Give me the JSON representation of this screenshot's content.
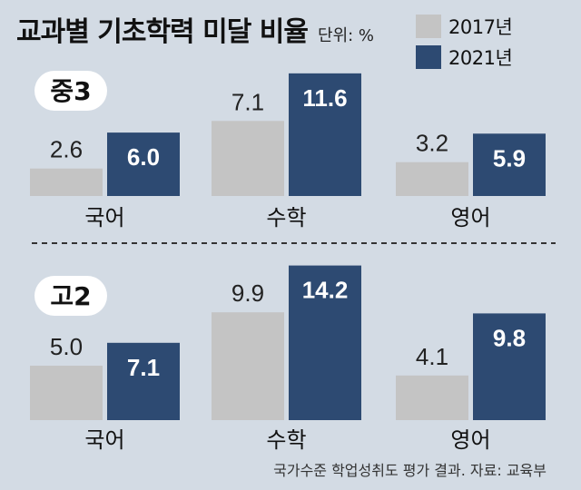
{
  "title": "교과별 기초학력 미달 비율",
  "unit": "단위: %",
  "colors": {
    "y2017": "#c4c4c4",
    "y2021": "#2d4a72"
  },
  "legend": [
    {
      "label": "2017년",
      "color": "#c4c4c4"
    },
    {
      "label": "2021년",
      "color": "#2d4a72"
    }
  ],
  "source": "국가수준 학업성취도 평가 결과.   자료: 교육부",
  "chart_data": [
    {
      "type": "bar",
      "panel": "중3",
      "categories": [
        "국어",
        "수학",
        "영어"
      ],
      "series": [
        {
          "name": "2017년",
          "values": [
            2.6,
            7.1,
            3.2
          ],
          "labels": [
            "2.6",
            "7.1",
            "3.2"
          ]
        },
        {
          "name": "2021년",
          "values": [
            6.0,
            11.6,
            5.9
          ],
          "labels": [
            "6.0",
            "11.6",
            "5.9"
          ]
        }
      ],
      "ylim": [
        0,
        15
      ]
    },
    {
      "type": "bar",
      "panel": "고2",
      "categories": [
        "국어",
        "수학",
        "영어"
      ],
      "series": [
        {
          "name": "2017년",
          "values": [
            5.0,
            9.9,
            4.1
          ],
          "labels": [
            "5.0",
            "9.9",
            "4.1"
          ]
        },
        {
          "name": "2021년",
          "values": [
            7.1,
            14.2,
            9.8
          ],
          "labels": [
            "7.1",
            "14.2",
            "9.8"
          ]
        }
      ],
      "ylim": [
        0,
        15
      ]
    }
  ]
}
